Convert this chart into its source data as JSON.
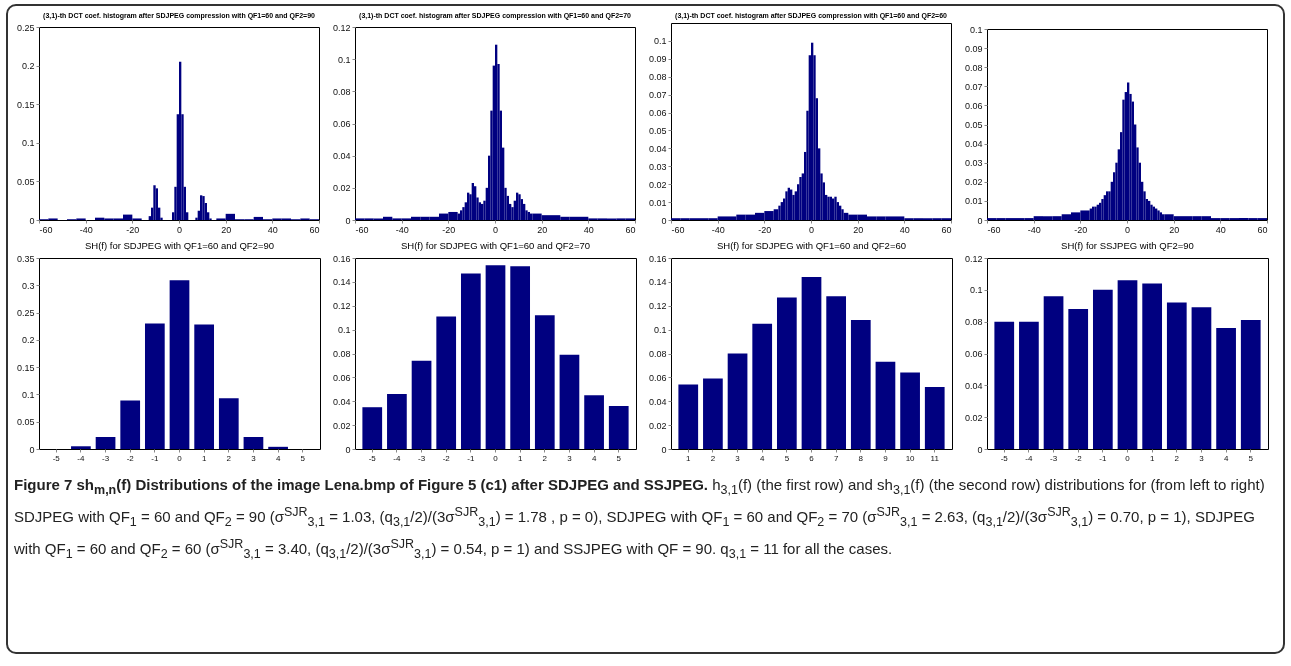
{
  "chart_data": [
    {
      "type": "histogram",
      "title": "(3,1)-th DCT coef. histogram after SDJPEG compression with QF1=60 and QF2=90",
      "color": "#000080",
      "xlim": [
        -60,
        60
      ],
      "xticks": [
        -60,
        -40,
        -20,
        0,
        20,
        40,
        60
      ],
      "ylim": [
        0,
        0.25
      ],
      "yticks": [
        0,
        0.05,
        0.1,
        0.15,
        0.2,
        0.25
      ],
      "bins": [
        -60,
        -56,
        -52,
        -48,
        -44,
        -40,
        -36,
        -32,
        -28,
        -24,
        -20,
        -16,
        -13,
        -12,
        -11,
        -10,
        -9,
        -8,
        -7,
        -3,
        -2,
        -1,
        0,
        1,
        2,
        3,
        4,
        7,
        8,
        9,
        10,
        11,
        12,
        13,
        14,
        16,
        20,
        24,
        28,
        32,
        36,
        40,
        44,
        48,
        52,
        56,
        60
      ],
      "values": [
        0.001,
        0.002,
        0,
        0.001,
        0.002,
        0,
        0.003,
        0.002,
        0.002,
        0.007,
        0.002,
        0,
        0.005,
        0.016,
        0.045,
        0.041,
        0.016,
        0.003,
        0,
        0.01,
        0.043,
        0.137,
        0.205,
        0.137,
        0.043,
        0.01,
        0,
        0.003,
        0.012,
        0.032,
        0.031,
        0.022,
        0.01,
        0.002,
        0,
        0.002,
        0.008,
        0.001,
        0.001,
        0.004,
        0.001,
        0.002,
        0.002,
        0.001,
        0.002,
        0.001
      ]
    },
    {
      "type": "histogram",
      "title": "(3,1)-th DCT coef. histogram after SDJPEG compression with QF1=60 and QF2=70",
      "color": "#000080",
      "xlim": [
        -60,
        60
      ],
      "xticks": [
        -60,
        -40,
        -20,
        0,
        20,
        40,
        60
      ],
      "ylim": [
        0,
        0.12
      ],
      "yticks": [
        0,
        0.02,
        0.04,
        0.06,
        0.08,
        0.1,
        0.12
      ],
      "bins": [
        -60,
        -56,
        -52,
        -48,
        -44,
        -40,
        -36,
        -32,
        -28,
        -24,
        -20,
        -16,
        -15,
        -14,
        -13,
        -12,
        -11,
        -10,
        -9,
        -8,
        -7,
        -6,
        -5,
        -4,
        -3,
        -2,
        -1,
        0,
        1,
        2,
        3,
        4,
        5,
        6,
        7,
        8,
        9,
        10,
        11,
        12,
        13,
        14,
        15,
        16,
        20,
        24,
        28,
        32,
        36,
        40,
        44,
        48,
        52,
        56,
        60
      ],
      "values": [
        0.001,
        0.001,
        0.001,
        0.002,
        0.001,
        0.001,
        0.002,
        0.002,
        0.002,
        0.004,
        0.005,
        0.004,
        0.006,
        0.008,
        0.011,
        0.017,
        0.016,
        0.023,
        0.021,
        0.014,
        0.011,
        0.01,
        0.012,
        0.02,
        0.04,
        0.068,
        0.096,
        0.109,
        0.097,
        0.068,
        0.045,
        0.02,
        0.015,
        0.01,
        0.008,
        0.012,
        0.017,
        0.016,
        0.013,
        0.01,
        0.006,
        0.005,
        0.004,
        0.004,
        0.003,
        0.003,
        0.002,
        0.002,
        0.002,
        0.001,
        0.001,
        0.001,
        0.001,
        0.001
      ]
    },
    {
      "type": "histogram",
      "title": "(3,1)-th DCT coef. histogram after SDJPEG compression with QF1=60 and QF2=60",
      "color": "#000080",
      "xlim": [
        -60,
        60
      ],
      "xticks": [
        -60,
        -40,
        -20,
        0,
        20,
        40,
        60
      ],
      "ylim": [
        0,
        0.11
      ],
      "yticks": [
        0,
        0.01,
        0.02,
        0.03,
        0.04,
        0.05,
        0.06,
        0.07,
        0.08,
        0.09,
        0.1
      ],
      "bins": [
        -60,
        -56,
        -52,
        -48,
        -44,
        -40,
        -36,
        -32,
        -28,
        -24,
        -20,
        -16,
        -15,
        -14,
        -13,
        -12,
        -11,
        -10,
        -9,
        -8,
        -7,
        -6,
        -5,
        -4,
        -3,
        -2,
        -1,
        0,
        1,
        2,
        3,
        4,
        5,
        6,
        7,
        8,
        9,
        10,
        11,
        12,
        13,
        14,
        15,
        16,
        20,
        24,
        28,
        32,
        36,
        40,
        44,
        48,
        52,
        56,
        60
      ],
      "values": [
        0.001,
        0.001,
        0.001,
        0.001,
        0.001,
        0.002,
        0.002,
        0.003,
        0.003,
        0.004,
        0.005,
        0.006,
        0.006,
        0.008,
        0.01,
        0.012,
        0.016,
        0.018,
        0.017,
        0.014,
        0.016,
        0.02,
        0.024,
        0.026,
        0.038,
        0.061,
        0.092,
        0.099,
        0.092,
        0.068,
        0.04,
        0.026,
        0.021,
        0.014,
        0.013,
        0.013,
        0.012,
        0.013,
        0.01,
        0.008,
        0.006,
        0.004,
        0.004,
        0.003,
        0.003,
        0.002,
        0.002,
        0.002,
        0.002,
        0.001,
        0.001,
        0.001,
        0.001,
        0.001
      ]
    },
    {
      "type": "histogram",
      "color": "#000080",
      "xlim": [
        -60,
        60
      ],
      "xticks": [
        -60,
        -40,
        -20,
        0,
        20,
        40,
        60
      ],
      "ylim": [
        0,
        0.1
      ],
      "yticks": [
        0,
        0.01,
        0.02,
        0.03,
        0.04,
        0.05,
        0.06,
        0.07,
        0.08,
        0.09,
        0.1
      ],
      "bins": [
        -60,
        -56,
        -52,
        -48,
        -44,
        -40,
        -36,
        -32,
        -28,
        -24,
        -20,
        -16,
        -15,
        -14,
        -13,
        -12,
        -11,
        -10,
        -9,
        -8,
        -7,
        -6,
        -5,
        -4,
        -3,
        -2,
        -1,
        0,
        1,
        2,
        3,
        4,
        5,
        6,
        7,
        8,
        9,
        10,
        11,
        12,
        13,
        14,
        15,
        16,
        20,
        24,
        28,
        32,
        36,
        40,
        44,
        48,
        52,
        56,
        60
      ],
      "values": [
        0.001,
        0.001,
        0.001,
        0.001,
        0.001,
        0.002,
        0.002,
        0.002,
        0.003,
        0.004,
        0.005,
        0.006,
        0.007,
        0.007,
        0.008,
        0.009,
        0.011,
        0.013,
        0.015,
        0.015,
        0.02,
        0.025,
        0.03,
        0.037,
        0.046,
        0.063,
        0.067,
        0.072,
        0.066,
        0.062,
        0.05,
        0.038,
        0.03,
        0.02,
        0.015,
        0.011,
        0.01,
        0.008,
        0.007,
        0.006,
        0.005,
        0.004,
        0.003,
        0.003,
        0.002,
        0.002,
        0.002,
        0.002,
        0.001,
        0.001,
        0.001,
        0.001,
        0.001,
        0.001
      ]
    },
    {
      "type": "bar",
      "title": "SH(f) for SDJPEG with QF1=60 and QF2=90",
      "color": "#000080",
      "categories": [
        "-5",
        "-4",
        "-3",
        "-2",
        "-1",
        "0",
        "1",
        "2",
        "3",
        "4",
        "5"
      ],
      "values": [
        0,
        0.005,
        0.022,
        0.089,
        0.23,
        0.309,
        0.228,
        0.093,
        0.022,
        0.004,
        0
      ],
      "ylim": [
        0,
        0.35
      ],
      "yticks": [
        0,
        0.05,
        0.1,
        0.15,
        0.2,
        0.25,
        0.3,
        0.35
      ]
    },
    {
      "type": "bar",
      "title": "SH(f) for SDJPEG with QF1=60 and QF2=70",
      "color": "#000080",
      "categories": [
        "-5",
        "-4",
        "-3",
        "-2",
        "-1",
        "0",
        "1",
        "2",
        "3",
        "4",
        "5"
      ],
      "values": [
        0.035,
        0.046,
        0.074,
        0.111,
        0.147,
        0.154,
        0.153,
        0.112,
        0.079,
        0.045,
        0.036
      ],
      "ylim": [
        0,
        0.16
      ],
      "yticks": [
        0,
        0.02,
        0.04,
        0.06,
        0.08,
        0.1,
        0.12,
        0.14,
        0.16
      ]
    },
    {
      "type": "bar",
      "title": "SH(f) for SDJPEG with QF1=60 and QF2=60",
      "color": "#000080",
      "categories": [
        "1",
        "2",
        "3",
        "4",
        "5",
        "6",
        "7",
        "8",
        "9",
        "10",
        "11"
      ],
      "values": [
        0.054,
        0.059,
        0.08,
        0.105,
        0.127,
        0.144,
        0.128,
        0.108,
        0.073,
        0.064,
        0.052
      ],
      "ylim": [
        0,
        0.16
      ],
      "yticks": [
        0,
        0.02,
        0.04,
        0.06,
        0.08,
        0.1,
        0.12,
        0.14,
        0.16
      ]
    },
    {
      "type": "bar",
      "title": "SH(f) for SSJPEG with QF2=90",
      "color": "#000080",
      "categories": [
        "-5",
        "-4",
        "-3",
        "-2",
        "-1",
        "0",
        "1",
        "2",
        "3",
        "4",
        "5"
      ],
      "values": [
        0.08,
        0.08,
        0.096,
        0.088,
        0.1,
        0.106,
        0.104,
        0.092,
        0.089,
        0.076,
        0.081
      ],
      "ylim": [
        0,
        0.12
      ],
      "yticks": [
        0,
        0.02,
        0.04,
        0.06,
        0.08,
        0.1,
        0.12
      ],
      "annotations": [
        "Figure 7 sh$_{m,n}$(f) Distributions of the image Lena.bmp of Figure 5 (c1) after SDJPEG and SSJPEG.",
        "h$_{3,1}$(f) (the first row) and sh$_{3,1}$(f) (the second row) distributions for (from left to right) SDJPEG with QF$_{1}$ = 60 and QF$_{2}$ = 90 (σ$^{SJR}$$_{3,1}$ = 1.03, (q$_{3,1}$/2)/(3σ$^{SJR}$$_{3,1}$) = 1.78 , p = 0), SDJPEG with QF$_{1}$ = 60 and QF$_{2}$ = 70 (σ$^{SJR}$$_{3,1}$ = 2.63, (q$_{3,1}$/2)/(3σ$^{SJR}$$_{3,1}$) = 0.70, p = 1), SDJPEG with QF$_{1}$ = 60 and QF$_{2}$ = 60 (σ$^{SJR}$$_{3,1}$ = 3.40, (q$_{3,1}$/2)/(3σ$^{SJR}$$_{3,1}$) = 0.54, p = 1) and SSJPEG with QF = 90. q$_{3,1}$ = 11 for all the cases."
      ]
    }
  ]
}
